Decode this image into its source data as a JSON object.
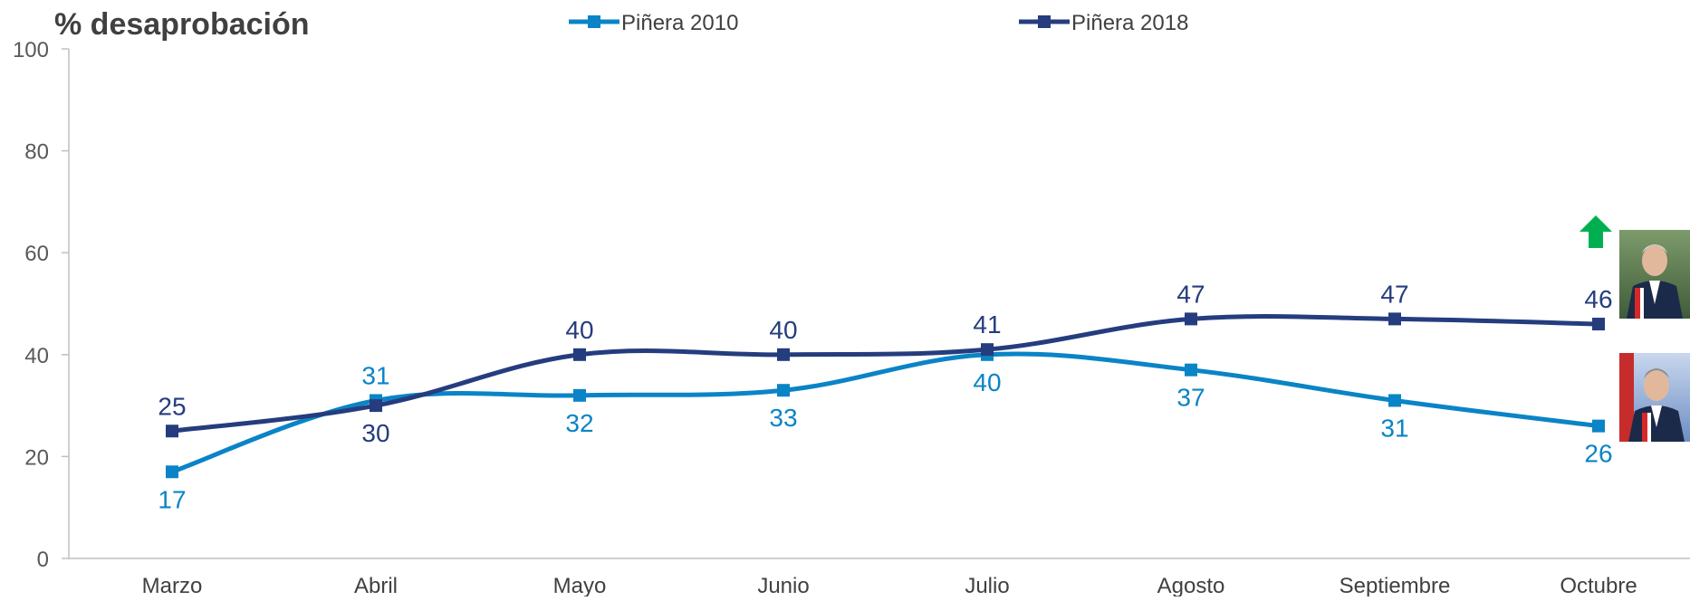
{
  "chart_data": {
    "type": "line",
    "title": "% desaprobación",
    "categories": [
      "Marzo",
      "Abril",
      "Mayo",
      "Junio",
      "Julio",
      "Agosto",
      "Septiembre",
      "Octubre"
    ],
    "ylim": [
      0,
      100
    ],
    "yticks": [
      0,
      20,
      40,
      60,
      80,
      100
    ],
    "grid": false,
    "legend_position": "top",
    "series": [
      {
        "name": "Piñera 2010",
        "color": "#0a84c6",
        "values": [
          17,
          31,
          32,
          33,
          40,
          37,
          31,
          26
        ],
        "labels": [
          "17",
          "31",
          "32",
          "33",
          "40",
          "37",
          "31",
          "26"
        ],
        "label_position": [
          "below",
          "above",
          "below",
          "below",
          "below",
          "below",
          "below",
          "below"
        ]
      },
      {
        "name": "Piñera 2018",
        "color": "#253d7e",
        "values": [
          25,
          30,
          40,
          40,
          41,
          47,
          47,
          46
        ],
        "labels": [
          "25",
          "30",
          "40",
          "40",
          "41",
          "47",
          "47",
          "46"
        ],
        "label_position": [
          "above",
          "below",
          "above",
          "above",
          "above",
          "above",
          "above",
          "above"
        ]
      }
    ],
    "annotations": [
      {
        "type": "up-arrow-icon",
        "color": "#00b050"
      },
      {
        "type": "portrait-photo",
        "series": "Piñera 2018"
      },
      {
        "type": "portrait-photo",
        "series": "Piñera 2010"
      }
    ]
  }
}
